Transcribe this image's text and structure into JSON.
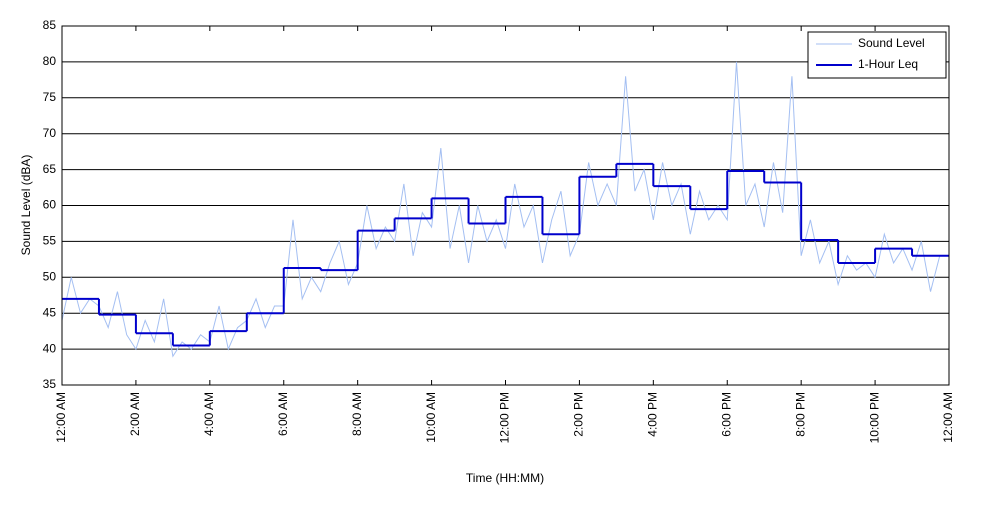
{
  "chart_data": {
    "type": "line",
    "y_label": "Sound Level (dBA)",
    "x_label": "Time (HH:MM)",
    "xlim": [
      0,
      24
    ],
    "xticks": [
      {
        "value": 0,
        "label": "12:00 AM"
      },
      {
        "value": 2,
        "label": "2:00 AM"
      },
      {
        "value": 4,
        "label": "4:00 AM"
      },
      {
        "value": 6,
        "label": "6:00 AM"
      },
      {
        "value": 8,
        "label": "8:00 AM"
      },
      {
        "value": 10,
        "label": "10:00 AM"
      },
      {
        "value": 12,
        "label": "12:00 PM"
      },
      {
        "value": 14,
        "label": "2:00 PM"
      },
      {
        "value": 16,
        "label": "4:00 PM"
      },
      {
        "value": 18,
        "label": "6:00 PM"
      },
      {
        "value": 20,
        "label": "8:00 PM"
      },
      {
        "value": 22,
        "label": "10:00 PM"
      },
      {
        "value": 24,
        "label": "12:00 AM"
      }
    ],
    "ylim": [
      35,
      85
    ],
    "yticks": [
      35,
      40,
      45,
      50,
      55,
      60,
      65,
      70,
      75,
      80,
      85
    ],
    "grid": true,
    "legend": "upper-right",
    "series": [
      {
        "name": "Sound Level",
        "color": "#a4bff2",
        "step": false,
        "x": [
          0,
          0.25,
          0.5,
          0.75,
          1,
          1.25,
          1.5,
          1.75,
          2,
          2.25,
          2.5,
          2.75,
          3,
          3.25,
          3.5,
          3.75,
          4,
          4.25,
          4.5,
          4.75,
          5,
          5.25,
          5.5,
          5.75,
          6,
          6.25,
          6.5,
          6.75,
          7,
          7.25,
          7.5,
          7.75,
          8,
          8.25,
          8.5,
          8.75,
          9,
          9.25,
          9.5,
          9.75,
          10,
          10.25,
          10.5,
          10.75,
          11,
          11.25,
          11.5,
          11.75,
          12,
          12.25,
          12.5,
          12.75,
          13,
          13.25,
          13.5,
          13.75,
          14,
          14.25,
          14.5,
          14.75,
          15,
          15.25,
          15.5,
          15.75,
          16,
          16.25,
          16.5,
          16.75,
          17,
          17.25,
          17.5,
          17.75,
          18,
          18.25,
          18.5,
          18.75,
          19,
          19.25,
          19.5,
          19.75,
          20,
          20.25,
          20.5,
          20.75,
          21,
          21.25,
          21.5,
          21.75,
          22,
          22.25,
          22.5,
          22.75,
          23,
          23.25,
          23.5,
          23.75
        ],
        "values": [
          44,
          50,
          45,
          47,
          46,
          43,
          48,
          42,
          40,
          44,
          41,
          47,
          39,
          41,
          40,
          42,
          41,
          46,
          40,
          43,
          44,
          47,
          43,
          46,
          46,
          58,
          47,
          50,
          48,
          52,
          55,
          49,
          52,
          60,
          54,
          57,
          55,
          63,
          53,
          59,
          57,
          68,
          54,
          60,
          52,
          60,
          55,
          58,
          54,
          63,
          57,
          60,
          52,
          58,
          62,
          53,
          56,
          66,
          60,
          63,
          60,
          78,
          62,
          65,
          58,
          66,
          60,
          63,
          56,
          62,
          58,
          60,
          58,
          80,
          60,
          63,
          57,
          66,
          59,
          78,
          53,
          58,
          52,
          55,
          49,
          53,
          51,
          52,
          50,
          56,
          52,
          54,
          51,
          55,
          48,
          53
        ]
      },
      {
        "name": "1-Hour Leq",
        "color": "#0000cc",
        "step": true,
        "x": [
          0,
          1,
          2,
          3,
          4,
          5,
          6,
          7,
          8,
          9,
          10,
          11,
          12,
          13,
          14,
          15,
          16,
          17,
          18,
          19,
          20,
          21,
          22,
          23
        ],
        "values": [
          47,
          44.8,
          42.2,
          40.5,
          42.5,
          45,
          51.3,
          51,
          56.5,
          58.2,
          61,
          57.5,
          61.2,
          56,
          64,
          65.8,
          62.7,
          59.5,
          64.8,
          63.2,
          55.2,
          52,
          54,
          53
        ]
      }
    ]
  }
}
